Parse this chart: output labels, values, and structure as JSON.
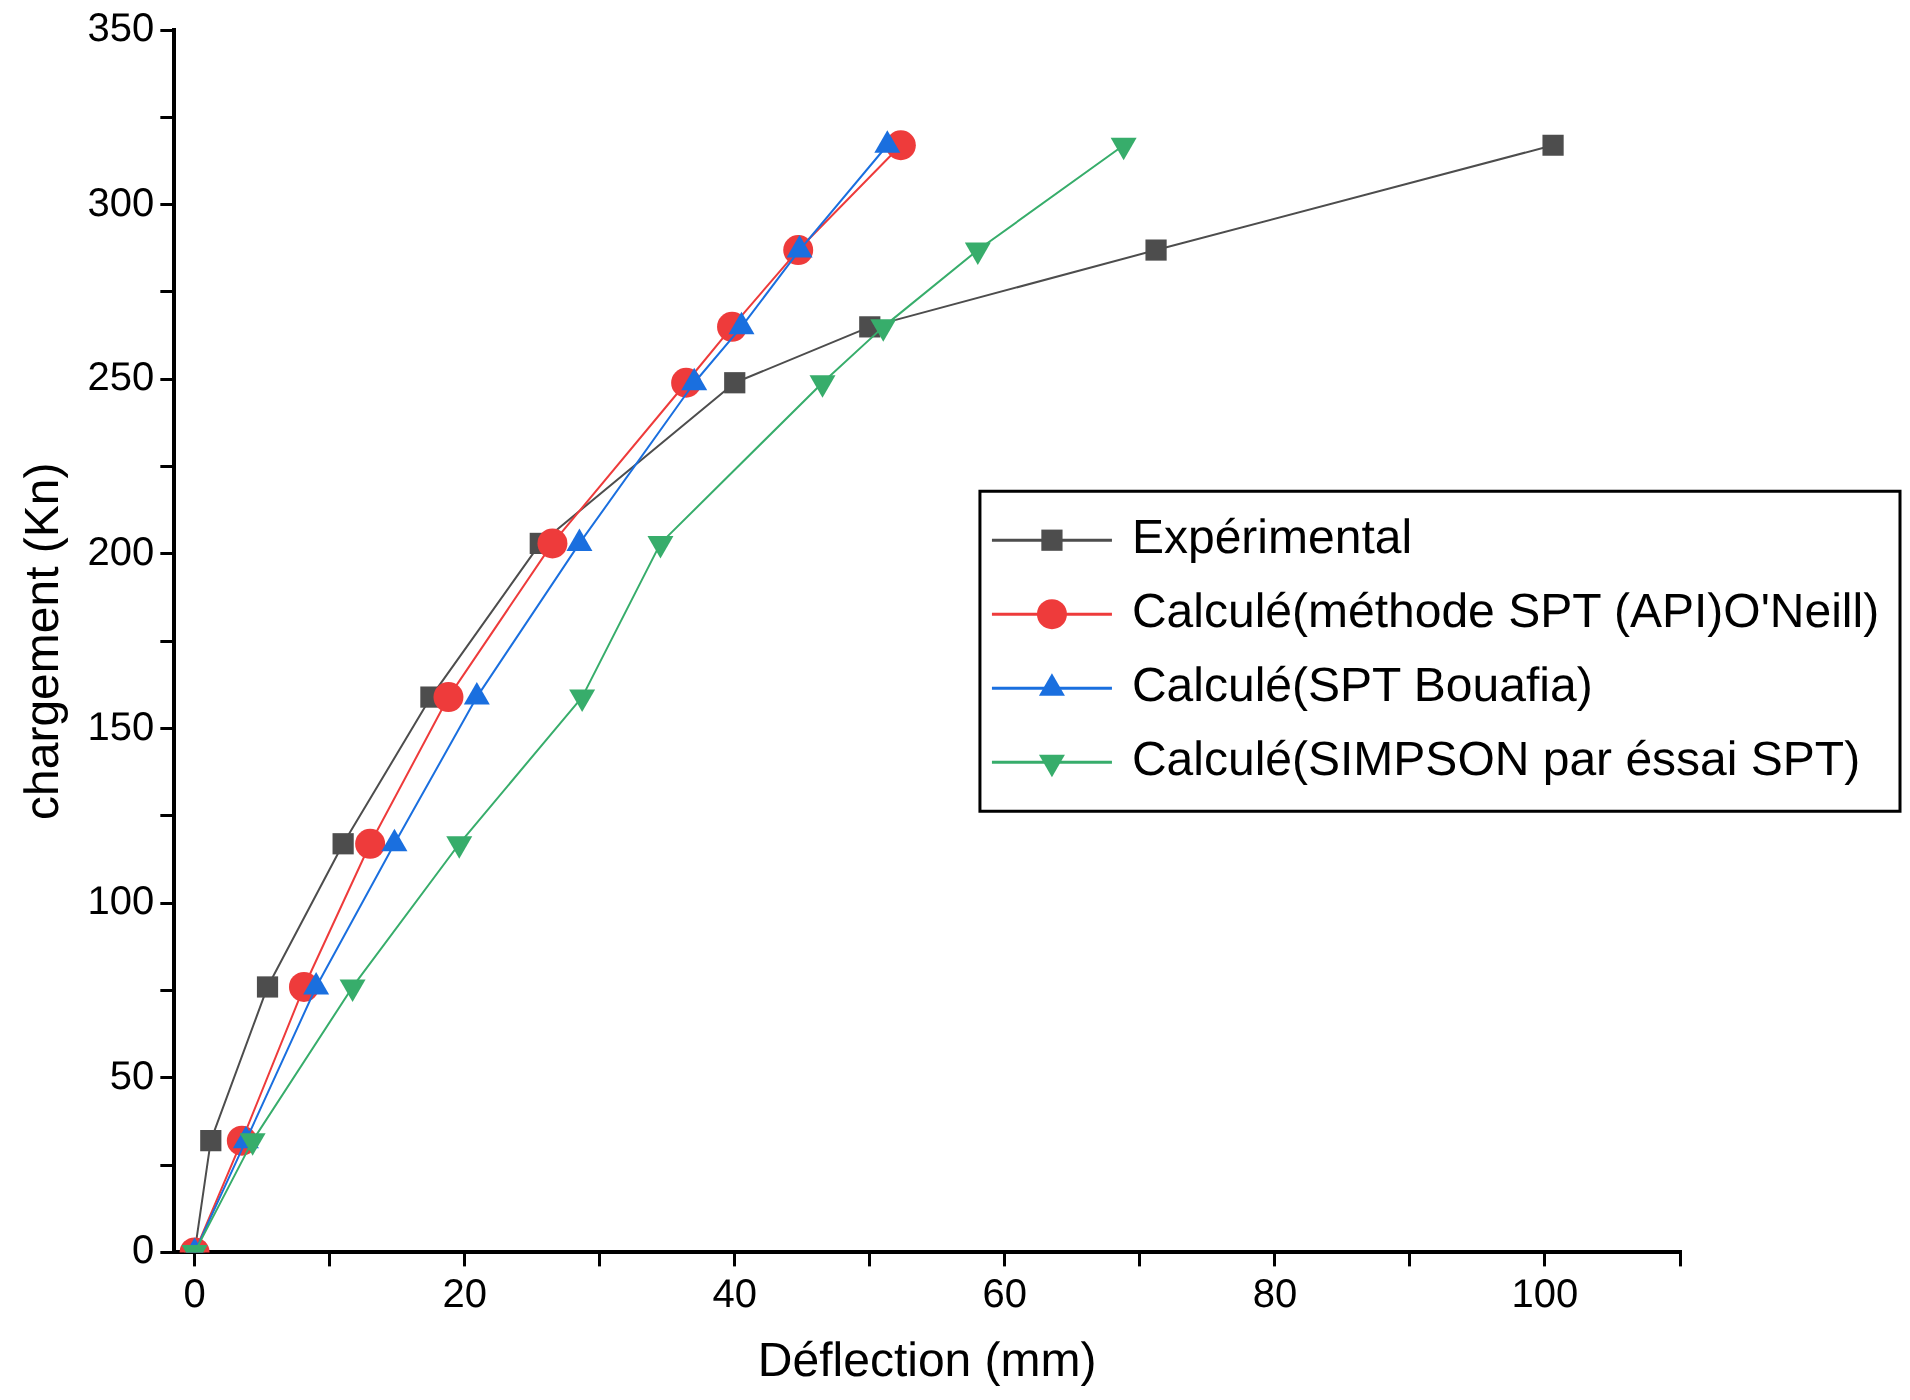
{
  "chart_data": {
    "type": "line",
    "xlabel": "Déflection (mm)",
    "ylabel": "chargement (Kn)",
    "xlim": [
      -1.5,
      110
    ],
    "ylim": [
      0,
      350
    ],
    "xticks": [
      0,
      {
        "value": 10,
        "label": null
      },
      20,
      {
        "value": 30,
        "label": null
      },
      40,
      {
        "value": 50,
        "label": null
      },
      60,
      {
        "value": 70,
        "label": null
      },
      80,
      {
        "value": 90,
        "label": null
      },
      100,
      {
        "value": 110,
        "label": null
      }
    ],
    "yticks": [
      0,
      {
        "value": 25,
        "label": null
      },
      50,
      {
        "value": 75,
        "label": null
      },
      100,
      {
        "value": 125,
        "label": null
      },
      150,
      {
        "value": 175,
        "label": null
      },
      200,
      {
        "value": 225,
        "label": null
      },
      250,
      {
        "value": 275,
        "label": null
      },
      300,
      {
        "value": 325,
        "label": null
      },
      350
    ],
    "grid": false,
    "legend": "right",
    "line_style": "solid",
    "series": [
      {
        "name": "Expérimental",
        "color": "#4d4d4d",
        "marker": "square",
        "x": [
          0,
          1.2,
          5.4,
          11,
          17.5,
          25.6,
          40,
          50,
          71.2,
          100.6
        ],
        "values": [
          0,
          32,
          76,
          117,
          159,
          203,
          249,
          265,
          287,
          317
        ]
      },
      {
        "name": "Calculé(méthode SPT (API)O'Neill)",
        "color": "#ee3b3b",
        "marker": "circle",
        "x": [
          0,
          3.5,
          8.1,
          13,
          18.8,
          26.5,
          36.4,
          39.8,
          44.7,
          52.3
        ],
        "values": [
          0,
          32,
          76,
          117,
          159,
          203,
          249,
          265,
          287,
          317
        ]
      },
      {
        "name": "Calculé(SPT Bouafia)",
        "color": "#1a6fdf",
        "marker": "triangle",
        "x": [
          0,
          3.8,
          9,
          14.8,
          20.9,
          28.5,
          37,
          40.5,
          44.8,
          51.3
        ],
        "values": [
          0,
          32,
          76,
          117,
          159,
          203,
          249,
          265,
          287,
          317
        ]
      },
      {
        "name": "Calculé(SIMPSON par éssai SPT)",
        "color": "#37ad6b",
        "marker": "triangle-down",
        "x": [
          0,
          4.3,
          11.7,
          19.6,
          28.7,
          34.5,
          46.5,
          51,
          58,
          68.8
        ],
        "values": [
          0,
          32,
          76,
          117,
          159,
          203,
          249,
          265,
          287,
          317
        ]
      }
    ]
  }
}
